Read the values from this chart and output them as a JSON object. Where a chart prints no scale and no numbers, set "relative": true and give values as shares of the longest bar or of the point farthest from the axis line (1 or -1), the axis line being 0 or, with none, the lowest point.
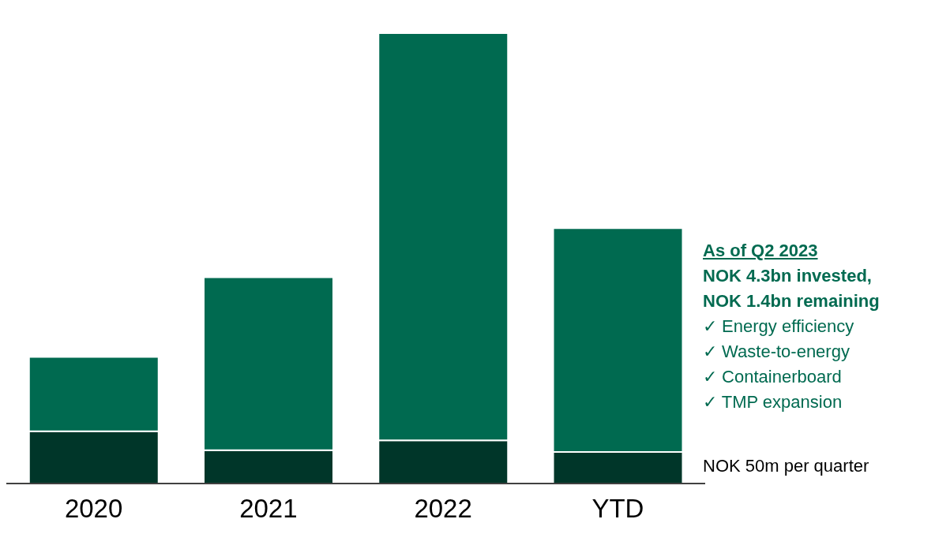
{
  "chart_data": {
    "type": "bar",
    "relative": true,
    "stacked": true,
    "categories": [
      "2020",
      "2021",
      "2022",
      "YTD"
    ],
    "series": [
      {
        "color": "#003629",
        "values": [
          0.116,
          0.074,
          0.096,
          0.07
        ]
      },
      {
        "color": "#006a50",
        "values": [
          0.165,
          0.384,
          0.904,
          0.497
        ]
      }
    ],
    "annotations": [
      "As of Q2 2023",
      "NOK 4.3bn invested,",
      "NOK 1.4bn remaining",
      "✓  Energy efficiency",
      "✓  Waste-to-energy",
      "✓  Containerboard",
      "✓  TMP expansion",
      "NOK 50m per quarter"
    ],
    "legend": false,
    "grid": false
  }
}
